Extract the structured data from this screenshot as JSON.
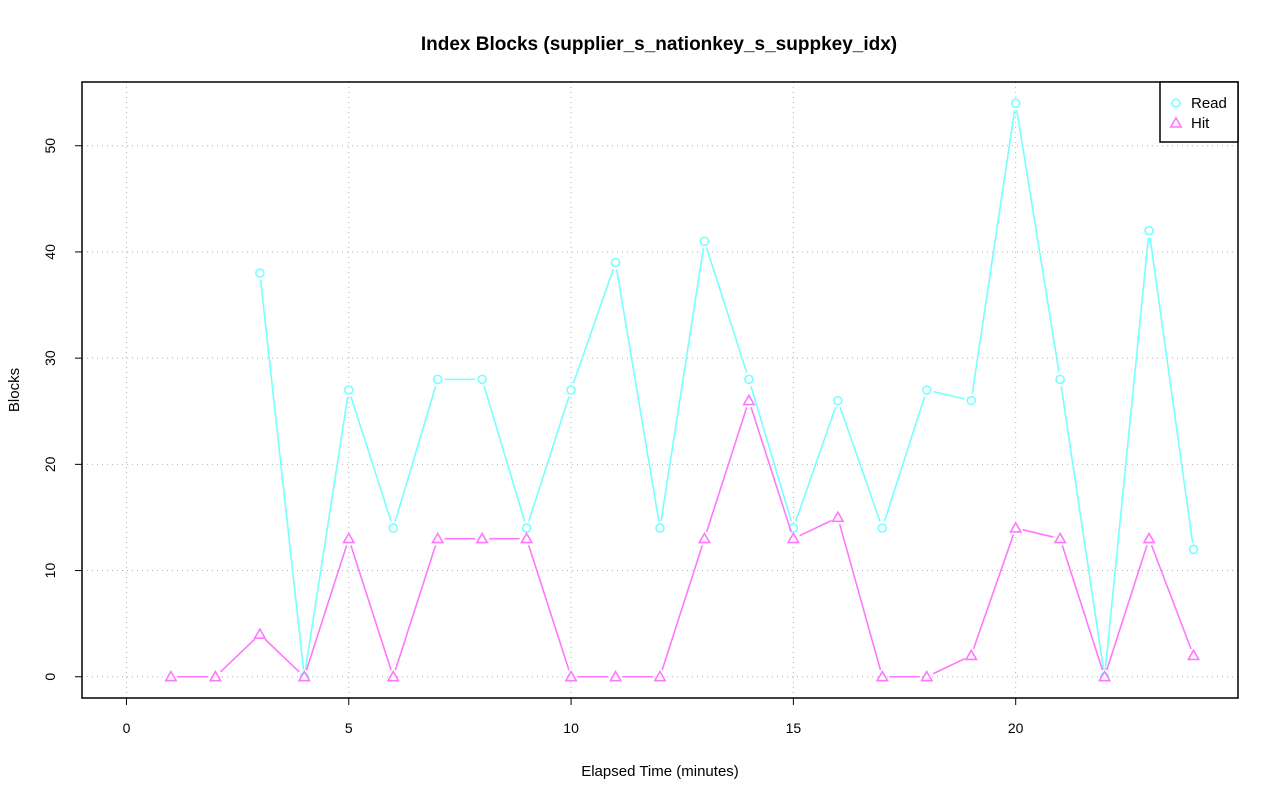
{
  "chart_data": {
    "type": "line",
    "title": "Index Blocks (supplier_s_nationkey_s_suppkey_idx)",
    "xlabel": "Elapsed Time (minutes)",
    "ylabel": "Blocks",
    "xlim": [
      -1,
      25
    ],
    "ylim": [
      -2,
      56
    ],
    "xticks": [
      0,
      5,
      10,
      15,
      20
    ],
    "yticks": [
      0,
      10,
      20,
      30,
      40,
      50
    ],
    "grid": true,
    "legend_position": "top-right",
    "x": [
      1,
      2,
      3,
      4,
      5,
      6,
      7,
      8,
      9,
      10,
      11,
      12,
      13,
      14,
      15,
      16,
      17,
      18,
      19,
      20,
      21,
      22,
      23,
      24
    ],
    "series": [
      {
        "name": "Read",
        "color": "#77ffff",
        "marker": "circle",
        "values": [
          null,
          null,
          38,
          0,
          27,
          14,
          28,
          28,
          14,
          27,
          39,
          14,
          41,
          28,
          14,
          26,
          14,
          27,
          26,
          54,
          28,
          0,
          42,
          12
        ]
      },
      {
        "name": "Hit",
        "color": "#ff77ff",
        "marker": "triangle",
        "values": [
          0,
          0,
          4,
          0,
          13,
          0,
          13,
          13,
          13,
          0,
          0,
          0,
          13,
          26,
          13,
          15,
          0,
          0,
          2,
          14,
          13,
          0,
          13,
          2
        ]
      }
    ]
  }
}
